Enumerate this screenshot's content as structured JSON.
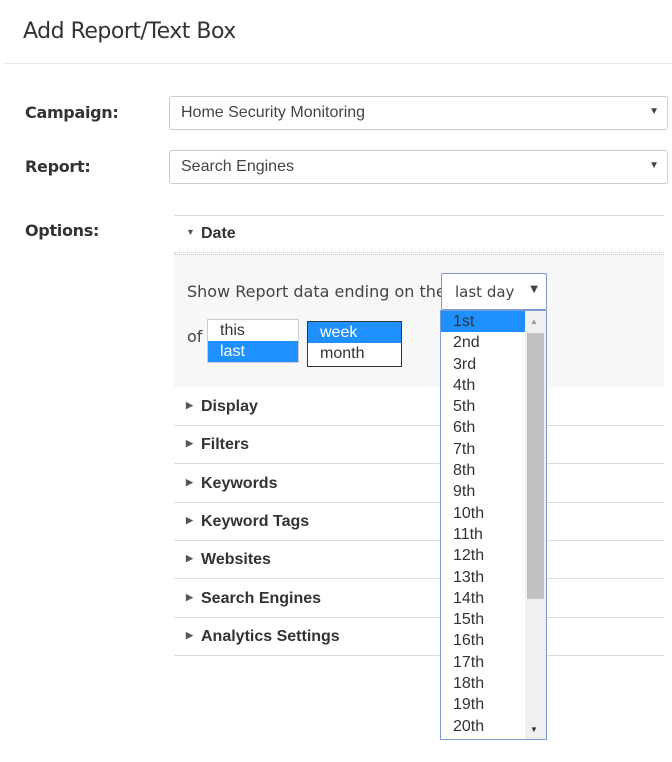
{
  "header": {
    "title": "Add Report/Text Box"
  },
  "form": {
    "campaign_label": "Campaign:",
    "campaign_value": "Home Security Monitoring",
    "report_label": "Report:",
    "report_value": "Search Engines",
    "options_label": "Options:"
  },
  "date": {
    "title": "Date",
    "text": "Show Report data ending on the",
    "select_value": "last day",
    "of": "of",
    "period_options": [
      "this",
      "last"
    ],
    "period_selected": "last",
    "unit_options": [
      "week",
      "month"
    ],
    "unit_selected": "week",
    "day_options": [
      "1st",
      "2nd",
      "3rd",
      "4th",
      "5th",
      "6th",
      "7th",
      "8th",
      "9th",
      "10th",
      "11th",
      "12th",
      "13th",
      "14th",
      "15th",
      "16th",
      "17th",
      "18th",
      "19th",
      "20th"
    ],
    "day_highlighted": "1st"
  },
  "sections": [
    "Display",
    "Filters",
    "Keywords",
    "Keyword Tags",
    "Websites",
    "Search Engines",
    "Analytics Settings"
  ],
  "colors": {
    "selected": "#1e90ff"
  }
}
